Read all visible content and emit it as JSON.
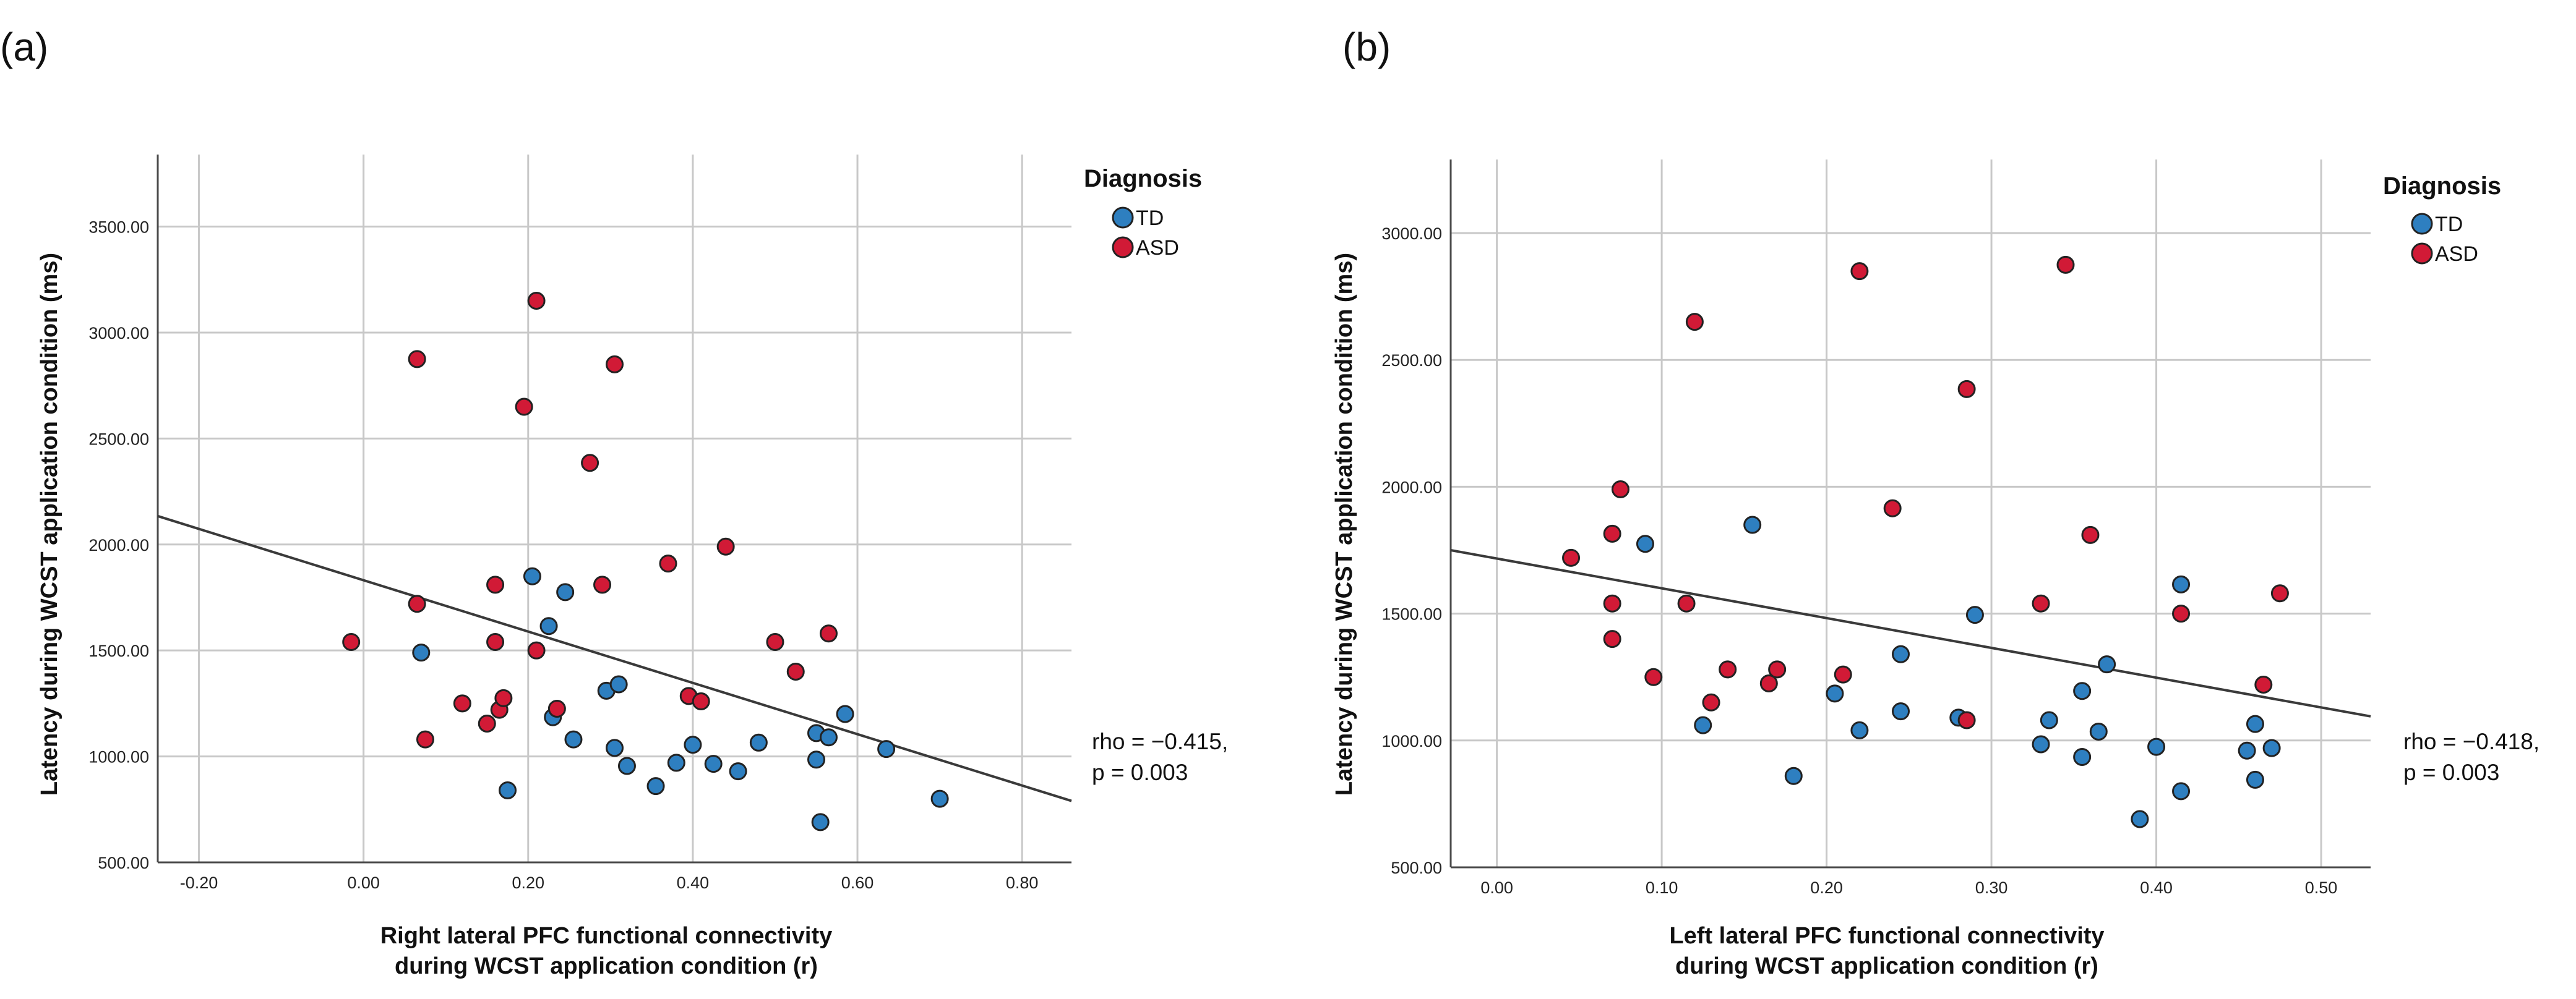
{
  "chart_data": [
    {
      "type": "scatter",
      "panel_label": "(a)",
      "xlabel": [
        "Right lateral PFC functional connectivity",
        "during WCST application condition (r)"
      ],
      "ylabel": "Latency during WCST application condition (ms)",
      "xlim": [
        -0.25,
        0.86
      ],
      "ylim": [
        500,
        3840
      ],
      "xticks": [
        -0.2,
        0.0,
        0.2,
        0.4,
        0.6,
        0.8
      ],
      "xtick_labels": [
        "-0.20",
        "0.00",
        "0.20",
        "0.40",
        "0.60",
        "0.80"
      ],
      "yticks": [
        500,
        1000,
        1500,
        2000,
        2500,
        3000,
        3500
      ],
      "ytick_labels": [
        "500.00",
        "1000.00",
        "1500.00",
        "2000.00",
        "2500.00",
        "3000.00",
        "3500.00"
      ],
      "grid": true,
      "legend_title": "Diagnosis",
      "legend_position": "top-right",
      "series": [
        {
          "name": "TD",
          "color": "#2e7fc0",
          "points": [
            [
              0.07,
              1490
            ],
            [
              0.175,
              840
            ],
            [
              0.205,
              1850
            ],
            [
              0.225,
              1615
            ],
            [
              0.23,
              1185
            ],
            [
              0.245,
              1775
            ],
            [
              0.255,
              1080
            ],
            [
              0.295,
              1310
            ],
            [
              0.305,
              1040
            ],
            [
              0.31,
              1340
            ],
            [
              0.32,
              955
            ],
            [
              0.355,
              860
            ],
            [
              0.38,
              970
            ],
            [
              0.4,
              1055
            ],
            [
              0.425,
              965
            ],
            [
              0.455,
              930
            ],
            [
              0.48,
              1065
            ],
            [
              0.55,
              1110
            ],
            [
              0.55,
              985
            ],
            [
              0.555,
              690
            ],
            [
              0.565,
              1090
            ],
            [
              0.585,
              1200
            ],
            [
              0.635,
              1035
            ],
            [
              0.7,
              800
            ]
          ]
        },
        {
          "name": "ASD",
          "color": "#d11a36",
          "points": [
            [
              -0.015,
              1540
            ],
            [
              0.065,
              2875
            ],
            [
              0.065,
              1720
            ],
            [
              0.075,
              1080
            ],
            [
              0.12,
              1250
            ],
            [
              0.15,
              1155
            ],
            [
              0.16,
              1810
            ],
            [
              0.16,
              1540
            ],
            [
              0.165,
              1220
            ],
            [
              0.17,
              1275
            ],
            [
              0.195,
              2650
            ],
            [
              0.21,
              3150
            ],
            [
              0.21,
              1500
            ],
            [
              0.235,
              1225
            ],
            [
              0.275,
              2385
            ],
            [
              0.29,
              1810
            ],
            [
              0.305,
              2850
            ],
            [
              0.37,
              1910
            ],
            [
              0.395,
              1285
            ],
            [
              0.41,
              1260
            ],
            [
              0.44,
              1990
            ],
            [
              0.5,
              1540
            ],
            [
              0.525,
              1400
            ],
            [
              0.565,
              1580
            ]
          ]
        }
      ],
      "fit_line": {
        "x": [
          -0.25,
          0.86
        ],
        "y": [
          2134,
          790
        ]
      },
      "annotation": [
        "rho = −0.415,",
        "p = 0.003"
      ]
    },
    {
      "type": "scatter",
      "panel_label": "(b)",
      "xlabel": [
        "Left lateral PFC functional connectivity",
        "during WCST application condition (r)"
      ],
      "ylabel": "Latency during WCST application condition (ms)",
      "xlim": [
        -0.028,
        0.53
      ],
      "ylim": [
        500,
        3290
      ],
      "xticks": [
        0.0,
        0.1,
        0.2,
        0.3,
        0.4,
        0.5
      ],
      "xtick_labels": [
        "0.00",
        "0.10",
        "0.20",
        "0.30",
        "0.40",
        "0.50"
      ],
      "yticks": [
        500,
        1000,
        1500,
        2000,
        2500,
        3000
      ],
      "ytick_labels": [
        "500.00",
        "1000.00",
        "1500.00",
        "2000.00",
        "2500.00",
        "3000.00"
      ],
      "grid": true,
      "legend_title": "Diagnosis",
      "legend_position": "top-right",
      "series": [
        {
          "name": "TD",
          "color": "#2e7fc0",
          "points": [
            [
              0.09,
              1775
            ],
            [
              0.125,
              1060
            ],
            [
              0.155,
              1850
            ],
            [
              0.18,
              860
            ],
            [
              0.205,
              1185
            ],
            [
              0.22,
              1040
            ],
            [
              0.245,
              1340
            ],
            [
              0.245,
              1115
            ],
            [
              0.28,
              1090
            ],
            [
              0.29,
              1495
            ],
            [
              0.33,
              985
            ],
            [
              0.335,
              1080
            ],
            [
              0.355,
              935
            ],
            [
              0.355,
              1195
            ],
            [
              0.365,
              1035
            ],
            [
              0.37,
              1300
            ],
            [
              0.39,
              690
            ],
            [
              0.4,
              975
            ],
            [
              0.415,
              1615
            ],
            [
              0.415,
              800
            ],
            [
              0.455,
              960
            ],
            [
              0.46,
              1065
            ],
            [
              0.46,
              845
            ],
            [
              0.47,
              970
            ]
          ]
        },
        {
          "name": "ASD",
          "color": "#d11a36",
          "points": [
            [
              0.045,
              1720
            ],
            [
              0.07,
              1815
            ],
            [
              0.07,
              1540
            ],
            [
              0.07,
              1400
            ],
            [
              0.075,
              1990
            ],
            [
              0.095,
              1250
            ],
            [
              0.115,
              1540
            ],
            [
              0.12,
              2650
            ],
            [
              0.13,
              1150
            ],
            [
              0.14,
              1280
            ],
            [
              0.165,
              1225
            ],
            [
              0.17,
              1280
            ],
            [
              0.21,
              1260
            ],
            [
              0.22,
              2850
            ],
            [
              0.24,
              1915
            ],
            [
              0.285,
              2385
            ],
            [
              0.285,
              1080
            ],
            [
              0.33,
              1540
            ],
            [
              0.345,
              2875
            ],
            [
              0.36,
              1810
            ],
            [
              0.415,
              1500
            ],
            [
              0.465,
              1220
            ],
            [
              0.475,
              1580
            ]
          ]
        }
      ],
      "fit_line": {
        "x": [
          -0.028,
          0.53
        ],
        "y": [
          1750,
          1095
        ]
      },
      "annotation": [
        "rho = −0.418,",
        "p = 0.003"
      ]
    }
  ]
}
